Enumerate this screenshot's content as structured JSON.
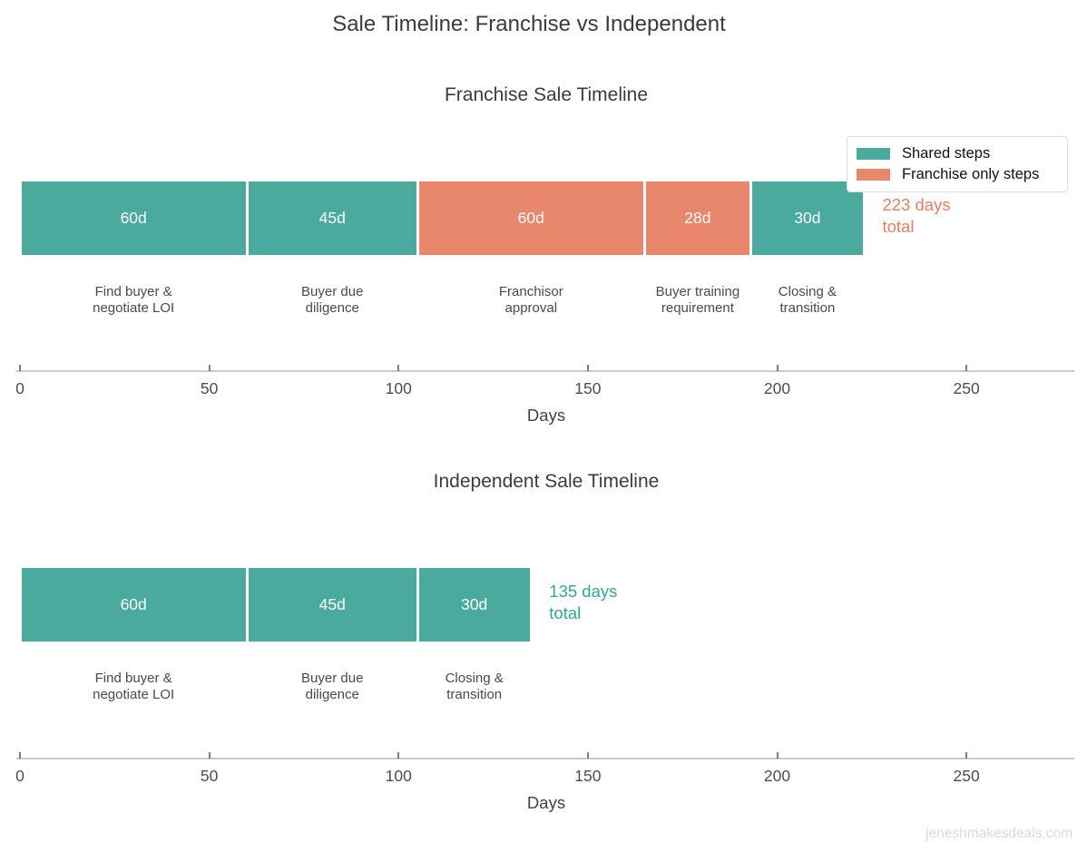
{
  "page": {
    "title": "Sale Timeline: Franchise vs Independent",
    "watermark": "jeneshmakesdeals.com"
  },
  "colors": {
    "shared": "#4AAA9D",
    "franchise_only": "#E8876B",
    "shared_text": "#31A79A",
    "franchise_only_text": "#E87E60"
  },
  "legend": {
    "items": [
      {
        "label": "Shared steps",
        "color_key": "shared"
      },
      {
        "label": "Franchise only steps",
        "color_key": "franchise_only"
      }
    ]
  },
  "chart_data": [
    {
      "type": "bar",
      "orientation": "horizontal-stacked-timeline",
      "title": "Franchise Sale Timeline",
      "xlabel": "Days",
      "xlim": [
        0,
        278
      ],
      "xticks": [
        0,
        50,
        100,
        150,
        200,
        250
      ],
      "grid": false,
      "legend_position": "top-right",
      "total_days": 223,
      "annotation": {
        "lines": [
          "223 days",
          "total"
        ],
        "color_key": "franchise_only_text"
      },
      "segments": [
        {
          "days": 60,
          "label": "60d",
          "step": [
            "Find buyer &",
            "negotiate LOI"
          ],
          "color_key": "shared"
        },
        {
          "days": 45,
          "label": "45d",
          "step": [
            "Buyer due",
            "diligence"
          ],
          "color_key": "shared"
        },
        {
          "days": 60,
          "label": "60d",
          "step": [
            "Franchisor",
            "approval"
          ],
          "color_key": "franchise_only"
        },
        {
          "days": 28,
          "label": "28d",
          "step": [
            "Buyer training",
            "requirement"
          ],
          "color_key": "franchise_only"
        },
        {
          "days": 30,
          "label": "30d",
          "step": [
            "Closing &",
            "transition"
          ],
          "color_key": "shared"
        }
      ]
    },
    {
      "type": "bar",
      "orientation": "horizontal-stacked-timeline",
      "title": "Independent Sale Timeline",
      "xlabel": "Days",
      "xlim": [
        0,
        278
      ],
      "xticks": [
        0,
        50,
        100,
        150,
        200,
        250
      ],
      "grid": false,
      "legend_position": "none",
      "total_days": 135,
      "annotation": {
        "lines": [
          "135 days",
          "total"
        ],
        "color_key": "shared_text"
      },
      "segments": [
        {
          "days": 60,
          "label": "60d",
          "step": [
            "Find buyer &",
            "negotiate LOI"
          ],
          "color_key": "shared"
        },
        {
          "days": 45,
          "label": "45d",
          "step": [
            "Buyer due",
            "diligence"
          ],
          "color_key": "shared"
        },
        {
          "days": 30,
          "label": "30d",
          "step": [
            "Closing &",
            "transition"
          ],
          "color_key": "shared"
        }
      ]
    }
  ]
}
